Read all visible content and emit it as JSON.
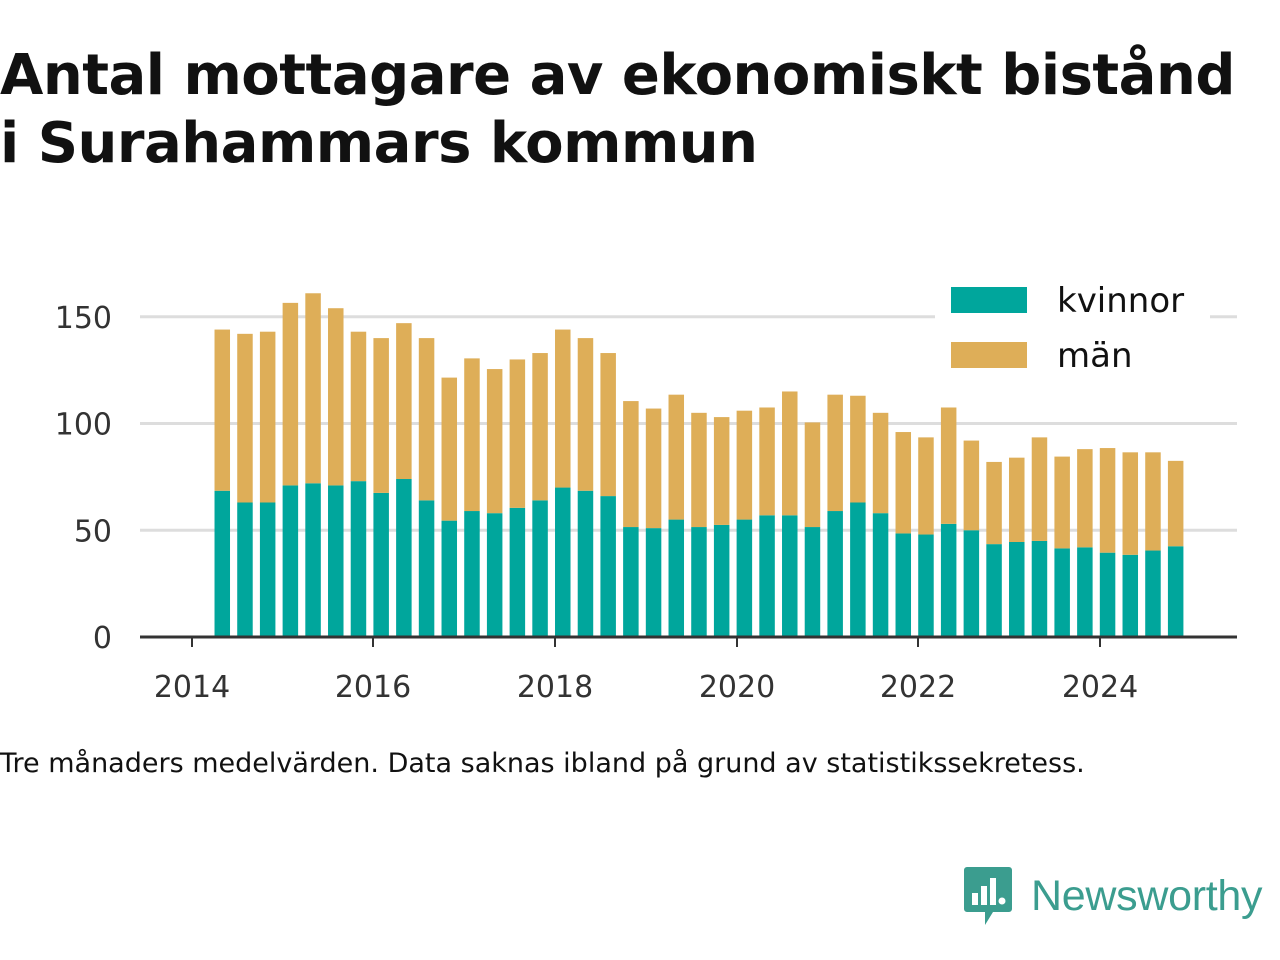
{
  "title_lines": [
    "Antal mottagare av ekonomiskt bistånd",
    "i Surahammars kommun"
  ],
  "note": "Tre månaders medelvärden. Data saknas ibland på grund av statistikssekretess.",
  "brand": {
    "name": "Newsworthy",
    "icon": "newsworthy-logo-icon",
    "color": "#3b9d8f"
  },
  "colors": {
    "kvinnor": "#00a69c",
    "man": "#deae58",
    "grid": "#dddddd",
    "axis": "#333333"
  },
  "chart_data": {
    "type": "bar",
    "stacked": true,
    "x_ticks": [
      "2014",
      "2016",
      "2018",
      "2020",
      "2022",
      "2024"
    ],
    "y_ticks": [
      0,
      50,
      100,
      150
    ],
    "ylim": [
      0,
      160
    ],
    "grid": true,
    "legend_position": "top-right",
    "series": [
      {
        "name": "kvinnor",
        "values": [
          68.5,
          63,
          63,
          71,
          72,
          71,
          73,
          67.5,
          74,
          64,
          54.5,
          59,
          58,
          60.5,
          64,
          70,
          68.5,
          66,
          51.5,
          51,
          55,
          51.5,
          52.5,
          55,
          57,
          57,
          51.5,
          59,
          63,
          58,
          48.5,
          48,
          53,
          50,
          43.5,
          44.5,
          45,
          41.5,
          42,
          39.5,
          38.5,
          40.5,
          42.5
        ]
      },
      {
        "name": "män",
        "values": [
          75.5,
          79,
          80,
          85.5,
          89,
          83,
          70,
          72.5,
          73,
          76,
          67,
          71.5,
          67.5,
          69.5,
          69,
          74,
          71.5,
          67,
          59,
          56,
          58.5,
          53.5,
          50.5,
          51,
          50.5,
          58,
          49,
          54.5,
          50,
          47,
          47.5,
          45.5,
          54.5,
          42,
          38.5,
          39.5,
          48.5,
          43,
          46,
          49,
          48,
          46,
          40
        ]
      }
    ],
    "x_start": "2014-05",
    "x_step_months": 3
  }
}
